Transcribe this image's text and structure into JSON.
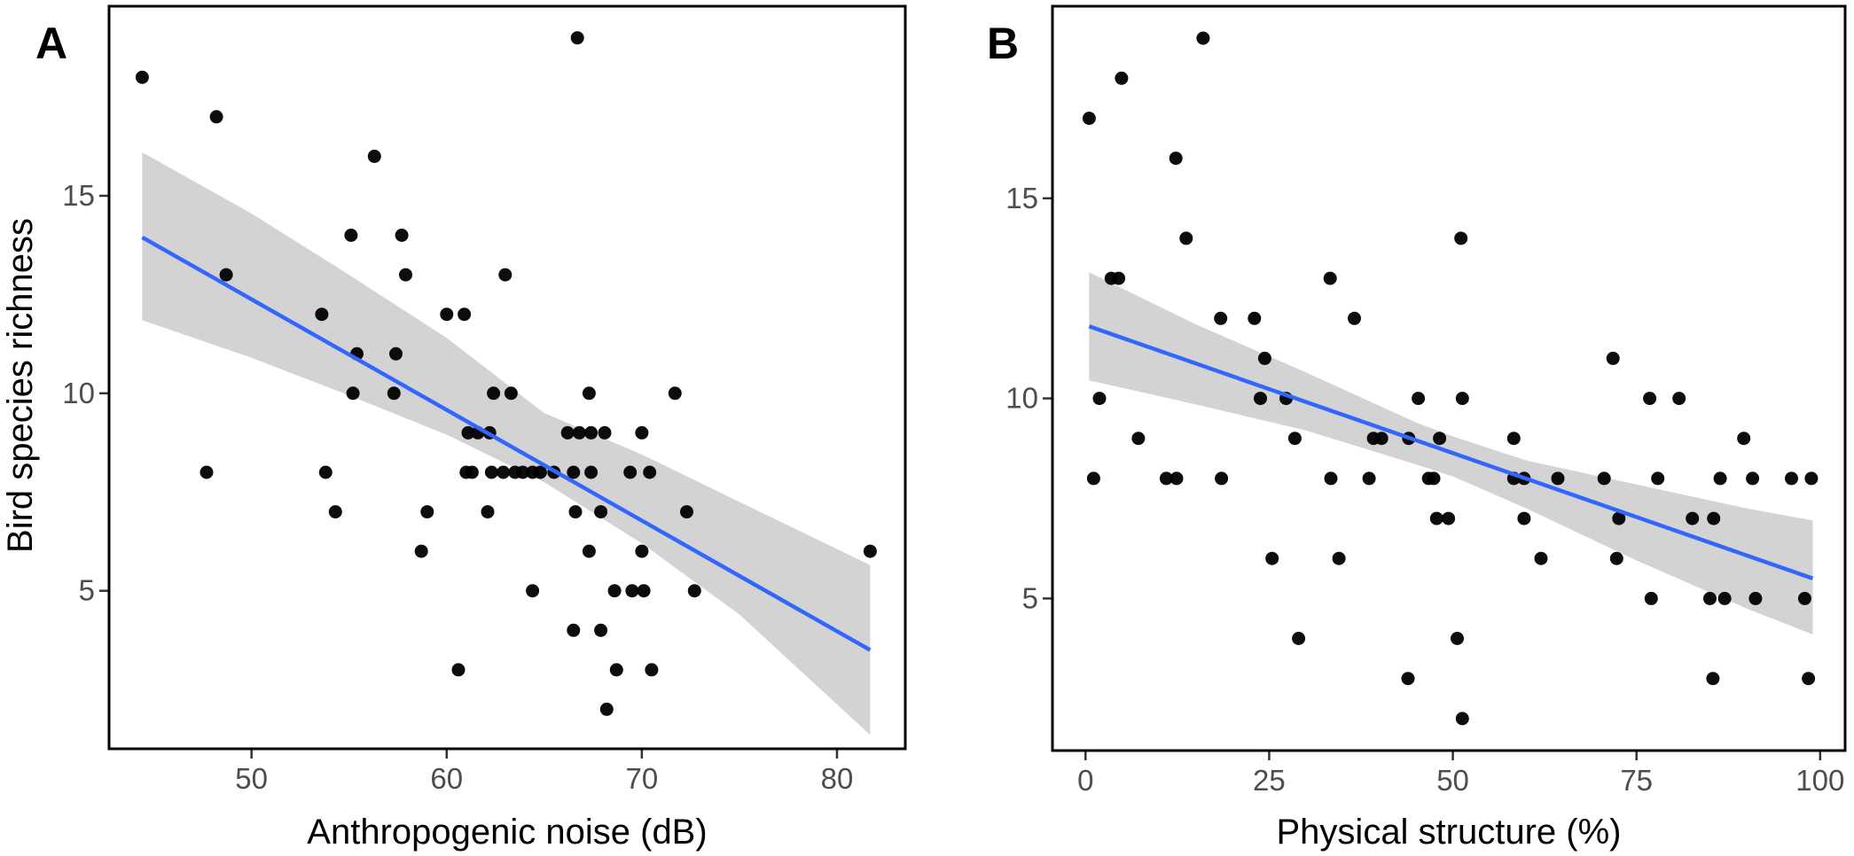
{
  "figure": {
    "ylabel": "Bird species richness"
  },
  "chart_data": [
    {
      "type": "scatter",
      "panel": "A",
      "title": "",
      "xlabel": "Anthropogenic noise (dB)",
      "ylabel": "Bird species richness",
      "xlim": [
        42.7,
        83.5
      ],
      "ylim": [
        1.0,
        19.8
      ],
      "xticks": [
        50,
        60,
        70,
        80
      ],
      "yticks": [
        5,
        10,
        15
      ],
      "grid": false,
      "colors": {
        "points": "#000000",
        "fit_line": "#3366ff",
        "ci_band": "#d3d3d3"
      },
      "points": [
        [
          44.4,
          18
        ],
        [
          48.2,
          17
        ],
        [
          66.7,
          19
        ],
        [
          56.3,
          16
        ],
        [
          55.1,
          14
        ],
        [
          57.7,
          14
        ],
        [
          48.7,
          13
        ],
        [
          57.9,
          13
        ],
        [
          63.0,
          13
        ],
        [
          53.6,
          12
        ],
        [
          60.0,
          12
        ],
        [
          60.9,
          12
        ],
        [
          55.4,
          11
        ],
        [
          57.4,
          11
        ],
        [
          55.2,
          10
        ],
        [
          57.3,
          10
        ],
        [
          62.4,
          10
        ],
        [
          63.3,
          10
        ],
        [
          67.3,
          10
        ],
        [
          71.7,
          10
        ],
        [
          61.1,
          9
        ],
        [
          61.6,
          9
        ],
        [
          62.2,
          9
        ],
        [
          66.2,
          9
        ],
        [
          66.8,
          9
        ],
        [
          67.4,
          9
        ],
        [
          68.1,
          9
        ],
        [
          70.0,
          9
        ],
        [
          47.7,
          8
        ],
        [
          53.8,
          8
        ],
        [
          61.0,
          8
        ],
        [
          61.3,
          8
        ],
        [
          62.3,
          8
        ],
        [
          62.9,
          8
        ],
        [
          63.5,
          8
        ],
        [
          63.9,
          8
        ],
        [
          64.4,
          8
        ],
        [
          64.8,
          8
        ],
        [
          65.5,
          8
        ],
        [
          66.5,
          8
        ],
        [
          67.4,
          8
        ],
        [
          69.4,
          8
        ],
        [
          70.4,
          8
        ],
        [
          54.3,
          7
        ],
        [
          59.0,
          7
        ],
        [
          62.1,
          7
        ],
        [
          66.6,
          7
        ],
        [
          67.9,
          7
        ],
        [
          72.3,
          7
        ],
        [
          58.7,
          6
        ],
        [
          67.3,
          6
        ],
        [
          70.0,
          6
        ],
        [
          81.7,
          6
        ],
        [
          64.4,
          5
        ],
        [
          68.6,
          5
        ],
        [
          69.5,
          5
        ],
        [
          70.1,
          5
        ],
        [
          72.7,
          5
        ],
        [
          66.5,
          4
        ],
        [
          67.9,
          4
        ],
        [
          60.6,
          3
        ],
        [
          68.7,
          3
        ],
        [
          70.5,
          3
        ],
        [
          68.2,
          2
        ]
      ],
      "fit": {
        "x": [
          44.4,
          81.7
        ],
        "y": [
          13.95,
          3.5
        ]
      },
      "ci": {
        "x": [
          44.4,
          50,
          55,
          60,
          65,
          70,
          75,
          81.7
        ],
        "lower": [
          11.85,
          10.9,
          9.95,
          8.95,
          7.75,
          6.2,
          4.4,
          1.35
        ],
        "upper": [
          16.1,
          14.55,
          13.0,
          11.4,
          9.5,
          8.45,
          7.25,
          5.65
        ]
      }
    },
    {
      "type": "scatter",
      "panel": "B",
      "title": "",
      "xlabel": "Physical structure (%)",
      "ylabel": "",
      "xlim": [
        -4.5,
        103.4
      ],
      "ylim": [
        1.2,
        19.8
      ],
      "xticks": [
        0,
        25,
        50,
        75,
        100
      ],
      "yticks": [
        5,
        10,
        15
      ],
      "grid": false,
      "colors": {
        "points": "#000000",
        "fit_line": "#3366ff",
        "ci_band": "#d3d3d3"
      },
      "points": [
        [
          16.0,
          19
        ],
        [
          4.9,
          18
        ],
        [
          0.5,
          17
        ],
        [
          12.3,
          16
        ],
        [
          1.1,
          8
        ],
        [
          1.9,
          10
        ],
        [
          7.2,
          9
        ],
        [
          11.0,
          8
        ],
        [
          12.4,
          8
        ],
        [
          13.7,
          14
        ],
        [
          3.5,
          13
        ],
        [
          4.5,
          13
        ],
        [
          18.4,
          12
        ],
        [
          18.5,
          8
        ],
        [
          23.0,
          12
        ],
        [
          23.8,
          10
        ],
        [
          24.4,
          11
        ],
        [
          25.4,
          6
        ],
        [
          27.3,
          10
        ],
        [
          28.5,
          9
        ],
        [
          29.0,
          4
        ],
        [
          33.3,
          13
        ],
        [
          33.4,
          8
        ],
        [
          34.5,
          6
        ],
        [
          36.6,
          12
        ],
        [
          38.6,
          8
        ],
        [
          39.2,
          9
        ],
        [
          40.3,
          9
        ],
        [
          44.0,
          9
        ],
        [
          43.9,
          3
        ],
        [
          45.3,
          10
        ],
        [
          46.7,
          8
        ],
        [
          47.4,
          8
        ],
        [
          47.8,
          7
        ],
        [
          48.2,
          9
        ],
        [
          49.4,
          7
        ],
        [
          50.6,
          4
        ],
        [
          51.1,
          14
        ],
        [
          51.3,
          10
        ],
        [
          51.3,
          2
        ],
        [
          58.3,
          9
        ],
        [
          58.3,
          8
        ],
        [
          59.7,
          8
        ],
        [
          59.7,
          7
        ],
        [
          62.0,
          6
        ],
        [
          64.3,
          8
        ],
        [
          70.6,
          8
        ],
        [
          71.8,
          11
        ],
        [
          72.3,
          6
        ],
        [
          72.6,
          7
        ],
        [
          76.8,
          10
        ],
        [
          77.0,
          5
        ],
        [
          77.9,
          8
        ],
        [
          80.8,
          10
        ],
        [
          82.6,
          7
        ],
        [
          85.0,
          5
        ],
        [
          85.5,
          7
        ],
        [
          85.4,
          3
        ],
        [
          86.4,
          8
        ],
        [
          87.0,
          5
        ],
        [
          89.6,
          9
        ],
        [
          90.8,
          8
        ],
        [
          91.2,
          5
        ],
        [
          96.1,
          8
        ],
        [
          97.9,
          5
        ],
        [
          98.4,
          3
        ],
        [
          98.8,
          8
        ]
      ],
      "fit": {
        "x": [
          0.5,
          99.0
        ],
        "y": [
          11.8,
          5.5
        ]
      },
      "ci": {
        "x": [
          0.5,
          15,
          30,
          45,
          50,
          60,
          75,
          90,
          99.0
        ],
        "lower": [
          10.45,
          9.85,
          9.2,
          8.35,
          8.05,
          7.25,
          5.95,
          4.75,
          4.1
        ],
        "upper": [
          13.15,
          11.85,
          10.65,
          9.4,
          9.05,
          8.45,
          7.85,
          7.25,
          6.95
        ]
      }
    }
  ]
}
